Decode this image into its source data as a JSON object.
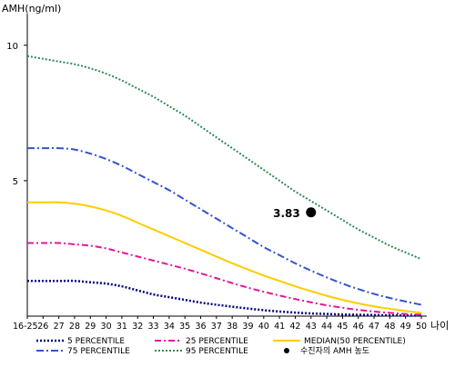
{
  "chart_data": {
    "type": "line",
    "ylabel": "AMH(ng/ml)",
    "xlabel": "나이",
    "ylim": [
      0,
      11
    ],
    "y_ticks": [
      5,
      10
    ],
    "x": [
      "16-25",
      "26",
      "27",
      "28",
      "29",
      "30",
      "31",
      "32",
      "33",
      "34",
      "35",
      "36",
      "37",
      "38",
      "39",
      "40",
      "41",
      "42",
      "43",
      "44",
      "45",
      "46",
      "47",
      "48",
      "49",
      "50"
    ],
    "series": [
      {
        "name": "5 PERCENTILE",
        "color": "#000080",
        "dash": "2,2",
        "width": 2.5,
        "values": [
          1.3,
          1.3,
          1.3,
          1.3,
          1.25,
          1.2,
          1.1,
          0.95,
          0.8,
          0.7,
          0.6,
          0.5,
          0.42,
          0.35,
          0.28,
          0.22,
          0.17,
          0.13,
          0.1,
          0.08,
          0.06,
          0.05,
          0.04,
          0.03,
          0.02,
          0.02
        ]
      },
      {
        "name": "25 PERCENTILE",
        "color": "#e0169b",
        "dash": "7,3,2,3",
        "width": 2,
        "values": [
          2.7,
          2.7,
          2.7,
          2.65,
          2.6,
          2.5,
          2.35,
          2.2,
          2.05,
          1.9,
          1.75,
          1.58,
          1.4,
          1.22,
          1.05,
          0.9,
          0.76,
          0.63,
          0.51,
          0.4,
          0.31,
          0.23,
          0.17,
          0.12,
          0.08,
          0.05
        ]
      },
      {
        "name": "MEDIAN(50 PERCENTILE)",
        "color": "#ffcc00",
        "dash": "",
        "width": 2,
        "values": [
          4.2,
          4.2,
          4.2,
          4.15,
          4.05,
          3.9,
          3.7,
          3.45,
          3.2,
          2.95,
          2.7,
          2.45,
          2.2,
          1.95,
          1.72,
          1.5,
          1.3,
          1.1,
          0.92,
          0.75,
          0.6,
          0.47,
          0.36,
          0.27,
          0.19,
          0.12
        ]
      },
      {
        "name": "75 PERCENTILE",
        "color": "#3355cc",
        "dash": "8,3,2,3",
        "width": 2,
        "values": [
          6.2,
          6.2,
          6.2,
          6.15,
          6.0,
          5.8,
          5.55,
          5.25,
          4.95,
          4.65,
          4.3,
          3.95,
          3.6,
          3.25,
          2.9,
          2.55,
          2.25,
          1.95,
          1.68,
          1.43,
          1.2,
          1.0,
          0.82,
          0.67,
          0.54,
          0.42
        ]
      },
      {
        "name": "95 PERCENTILE",
        "color": "#2e8b57",
        "dash": "2,2",
        "width": 2,
        "values": [
          9.6,
          9.5,
          9.4,
          9.3,
          9.15,
          8.95,
          8.7,
          8.4,
          8.1,
          7.75,
          7.4,
          7.0,
          6.6,
          6.2,
          5.8,
          5.4,
          5.0,
          4.6,
          4.25,
          3.9,
          3.55,
          3.2,
          2.9,
          2.6,
          2.35,
          2.1
        ]
      }
    ],
    "point": {
      "name": "수진자의 AMH 농도",
      "x": "43",
      "y": 3.83,
      "label": "3.83",
      "color": "#000000"
    },
    "legend_position": "bottom",
    "grid": false
  }
}
